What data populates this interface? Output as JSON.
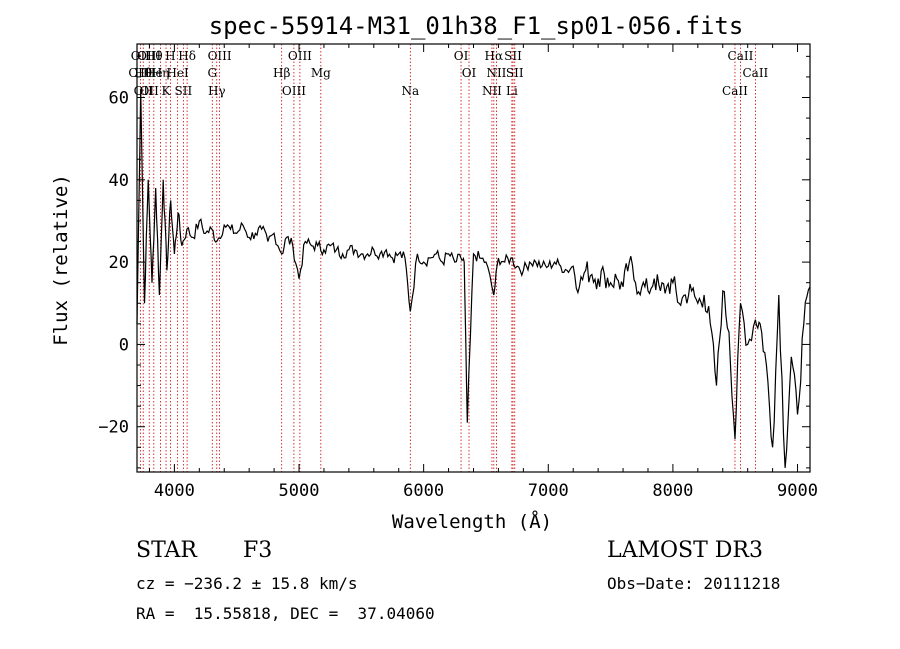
{
  "chart_data": {
    "type": "line",
    "title": "spec-55914-M31_01h38_F1_sp01-056.fits",
    "xlabel": "Wavelength (Å)",
    "ylabel": "Flux (relative)",
    "xlim": [
      3700,
      9100
    ],
    "ylim": [
      -31,
      73
    ],
    "xticks": [
      4000,
      5000,
      6000,
      7000,
      8000,
      9000
    ],
    "yticks": [
      -20,
      0,
      20,
      40,
      60
    ],
    "xtick_labels": [
      "4000",
      "5000",
      "6000",
      "7000",
      "8000",
      "9000"
    ],
    "ytick_labels": [
      "−20",
      "0",
      "20",
      "40",
      "60"
    ],
    "spectrum": {
      "color": "#000000",
      "x": [
        3700,
        3730,
        3760,
        3790,
        3820,
        3850,
        3880,
        3910,
        3940,
        3970,
        4000,
        4030,
        4060,
        4100,
        4150,
        4200,
        4250,
        4300,
        4340,
        4400,
        4450,
        4500,
        4550,
        4600,
        4650,
        4700,
        4750,
        4800,
        4861,
        4900,
        4950,
        5000,
        5050,
        5100,
        5150,
        5200,
        5250,
        5300,
        5350,
        5400,
        5450,
        5500,
        5550,
        5600,
        5650,
        5700,
        5750,
        5800,
        5850,
        5893,
        5950,
        6000,
        6050,
        6100,
        6150,
        6200,
        6250,
        6300,
        6325,
        6350,
        6400,
        6450,
        6500,
        6563,
        6600,
        6650,
        6700,
        6750,
        6800,
        6850,
        6900,
        6950,
        7000,
        7050,
        7100,
        7150,
        7200,
        7250,
        7300,
        7350,
        7400,
        7450,
        7500,
        7550,
        7600,
        7650,
        7700,
        7750,
        7800,
        7850,
        7900,
        7950,
        8000,
        8050,
        8100,
        8150,
        8200,
        8250,
        8300,
        8350,
        8400,
        8450,
        8498,
        8542,
        8600,
        8662,
        8700,
        8750,
        8800,
        8850,
        8900,
        8950,
        9000,
        9050,
        9100
      ],
      "y": [
        5,
        62,
        10,
        40,
        15,
        38,
        12,
        40,
        18,
        35,
        22,
        32,
        24,
        28,
        26,
        30,
        27,
        28,
        25,
        29,
        28,
        27,
        29,
        26,
        27,
        28,
        25,
        27,
        22,
        26,
        24,
        16,
        25,
        24,
        24,
        23,
        24,
        23,
        22,
        23,
        23,
        22,
        22,
        23,
        22,
        23,
        21,
        22,
        21,
        8,
        22,
        20,
        21,
        22,
        20,
        22,
        20,
        21,
        20,
        -19,
        22,
        21,
        20,
        12,
        21,
        20,
        21,
        19,
        18,
        20,
        20,
        19,
        19,
        20,
        19,
        18,
        19,
        14,
        18,
        17,
        16,
        17,
        15,
        16,
        14,
        20,
        15,
        14,
        13,
        16,
        13,
        14,
        15,
        10,
        12,
        13,
        10,
        12,
        5,
        -10,
        13,
        3,
        -23,
        10,
        0,
        6,
        5,
        -5,
        -25,
        12,
        -30,
        -3,
        -17,
        5,
        14
      ]
    },
    "lines": [
      {
        "wl": 3727,
        "labels": [
          "OII",
          "OIII"
        ]
      },
      {
        "wl": 3750,
        "labels": [
          "Hθ",
          "OII"
        ]
      },
      {
        "wl": 3798,
        "labels": [
          "OII",
          "OIII"
        ]
      },
      {
        "wl": 3835,
        "labels": [
          "Hθ",
          "He"
        ]
      },
      {
        "wl": 3889,
        "labels": [
          "Hη"
        ]
      },
      {
        "wl": 3933,
        "labels": [
          "K"
        ]
      },
      {
        "wl": 3968,
        "labels": [
          "H"
        ]
      },
      {
        "wl": 4026,
        "labels": [
          "HeI"
        ]
      },
      {
        "wl": 4072,
        "labels": [
          "SII"
        ]
      },
      {
        "wl": 4102,
        "labels": [
          "Hδ"
        ]
      },
      {
        "wl": 4304,
        "labels": [
          "G"
        ]
      },
      {
        "wl": 4340,
        "labels": [
          "Hγ"
        ]
      },
      {
        "wl": 4363,
        "labels": [
          "OIII"
        ]
      },
      {
        "wl": 4861,
        "labels": [
          "Hβ"
        ]
      },
      {
        "wl": 4959,
        "labels": [
          "OIII"
        ]
      },
      {
        "wl": 5007,
        "labels": [
          "OIII"
        ]
      },
      {
        "wl": 5175,
        "labels": [
          "Mg"
        ]
      },
      {
        "wl": 5893,
        "labels": [
          "Na"
        ]
      },
      {
        "wl": 6300,
        "labels": [
          "OI"
        ]
      },
      {
        "wl": 6364,
        "labels": [
          "OI"
        ]
      },
      {
        "wl": 6548,
        "labels": [
          "NII"
        ]
      },
      {
        "wl": 6563,
        "labels": [
          "Hα"
        ]
      },
      {
        "wl": 6584,
        "labels": [
          "NII"
        ]
      },
      {
        "wl": 6708,
        "labels": [
          "Li"
        ]
      },
      {
        "wl": 6717,
        "labels": [
          "SII"
        ]
      },
      {
        "wl": 6731,
        "labels": [
          "SII"
        ]
      },
      {
        "wl": 8498,
        "labels": [
          "CaII"
        ]
      },
      {
        "wl": 8542,
        "labels": [
          "CaII"
        ]
      },
      {
        "wl": 8662,
        "labels": [
          "CaII"
        ]
      }
    ],
    "line_color": "#cc0000"
  },
  "info": {
    "object_class": "STAR",
    "subclass": "F3",
    "survey": "LAMOST DR3",
    "redshift": "cz = −236.2 ± 15.8 km/s",
    "obs_date": "Obs−Date: 20111218",
    "coords": "RA =  15.55818, DEC =  37.04060"
  }
}
